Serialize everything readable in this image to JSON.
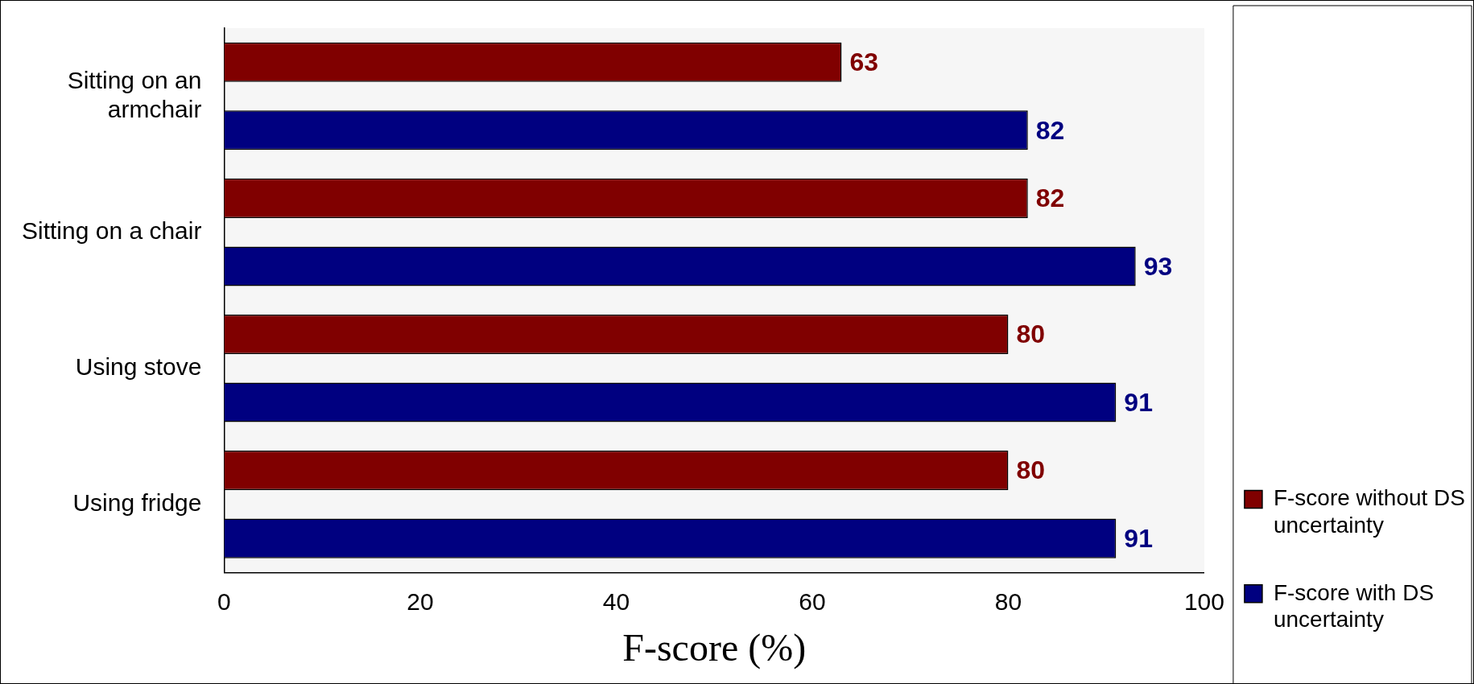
{
  "chart_data": {
    "type": "bar",
    "orientation": "horizontal",
    "xlabel": "F-score (%)",
    "categories": [
      "Sitting on an armchair",
      "Sitting on a chair",
      "Using stove",
      "Using fridge"
    ],
    "series": [
      {
        "name": "F-score without DS uncertainty",
        "color": "#800000",
        "values": [
          63,
          82,
          80,
          80
        ]
      },
      {
        "name": "F-score with DS uncertainty",
        "color": "#000080",
        "values": [
          82,
          93,
          91,
          91
        ]
      }
    ],
    "xlim": [
      0,
      100
    ],
    "xticks": [
      0,
      20,
      40,
      60,
      80,
      100
    ],
    "grid": false,
    "legend": "bottom right",
    "data_labels": true
  }
}
